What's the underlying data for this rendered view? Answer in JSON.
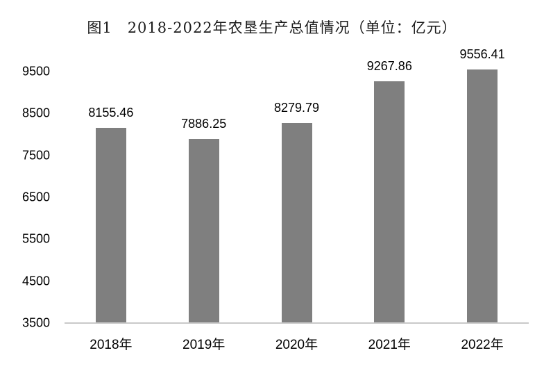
{
  "chart_data": {
    "type": "bar",
    "title": "图1　2018-2022年农垦生产总值情况（单位：亿元）",
    "unit": "亿元",
    "categories": [
      "2018年",
      "2019年",
      "2020年",
      "2021年",
      "2022年"
    ],
    "values": [
      8155.46,
      7886.25,
      8279.79,
      9267.86,
      9556.41
    ],
    "data_labels": [
      "8155.46",
      "7886.25",
      "8279.79",
      "9267.86",
      "9556.41"
    ],
    "yticks": [
      3500,
      4500,
      5500,
      6500,
      7500,
      8500,
      9500
    ],
    "ylim": [
      3500,
      9500
    ],
    "grid": false,
    "legend_position": "none",
    "bar_color": "#7F7F7F",
    "axis_line_color": "#C9C9C9",
    "text_color": "#000000"
  }
}
